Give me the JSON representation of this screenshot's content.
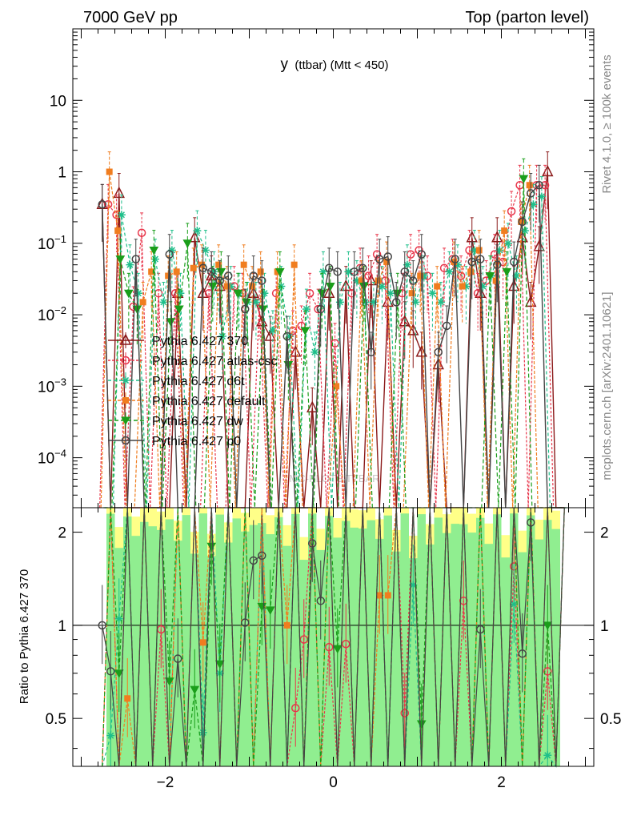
{
  "header": {
    "left": "7000 GeV pp",
    "right": "Top (parton level)"
  },
  "side_labels": {
    "rivet": "Rivet 4.1.0, ≥ 100k events",
    "mcplots": "mcplots.cern.ch [arXiv:2401.10621]"
  },
  "watermark": "MC-PLOTS TTBAR",
  "colors": {
    "p370": "#8b1a1a",
    "atlas": "#e8354a",
    "d6t": "#1fbf8a",
    "default": "#f07d1f",
    "dw": "#1a9e1a",
    "p0": "#444444",
    "band_yellow": "#ffff88",
    "band_green": "#90ee90"
  },
  "chart_data": [
    {
      "type": "line",
      "title": "y (ttbar) (Mtt < 450)",
      "title_main": "y",
      "title_sub": "(ttbar) (Mtt < 450)",
      "xlabel": "",
      "ylabel": "",
      "yscale": "log",
      "xlim": [
        -3.1,
        3.1
      ],
      "ylim": [
        2e-05,
        100
      ],
      "y_ticks": [
        {
          "value": 10,
          "label": "10"
        },
        {
          "value": 1,
          "label": "1"
        },
        {
          "value": 0.1,
          "label": "10^-1"
        },
        {
          "value": 0.01,
          "label": "10^-2"
        },
        {
          "value": 0.001,
          "label": "10^-3"
        },
        {
          "value": 0.0001,
          "label": "10^-4"
        }
      ],
      "legend_placement": "center-left",
      "x": [
        -2.75,
        -2.65,
        -2.55,
        -2.45,
        -2.35,
        -2.25,
        -2.15,
        -2.05,
        -1.95,
        -1.85,
        -1.75,
        -1.65,
        -1.55,
        -1.45,
        -1.35,
        -1.25,
        -1.15,
        -1.05,
        -0.95,
        -0.85,
        -0.75,
        -0.65,
        -0.55,
        -0.45,
        -0.35,
        -0.25,
        -0.15,
        -0.05,
        0.05,
        0.15,
        0.25,
        0.35,
        0.45,
        0.55,
        0.65,
        0.75,
        0.85,
        0.95,
        1.05,
        1.15,
        1.25,
        1.35,
        1.45,
        1.55,
        1.65,
        1.75,
        1.85,
        1.95,
        2.05,
        2.15,
        2.25,
        2.35,
        2.45,
        2.55,
        2.65,
        2.75
      ],
      "series": [
        {
          "name": "Pythia 6.427 370",
          "marker": "triangle",
          "color": "#8b1a1a",
          "values": [
            0.35,
            0,
            0.5,
            0,
            0,
            0,
            0,
            0,
            0,
            0.02,
            0,
            0.12,
            0.02,
            0.035,
            0.025,
            0,
            0,
            0,
            0.02,
            0.008,
            0.005,
            0,
            0,
            0.003,
            0,
            0.0005,
            0,
            0.02,
            0,
            0.025,
            0,
            0,
            0.03,
            0,
            0.015,
            0,
            0.008,
            0.006,
            0.003,
            0,
            0.002,
            0,
            0,
            0,
            0.12,
            0.02,
            0,
            0.12,
            0,
            0.025,
            0.12,
            0.015,
            0.09,
            1.0,
            0,
            0
          ]
        },
        {
          "name": "Pythia 6.427 atlas-csc",
          "marker": "open-circle",
          "color": "#e8354a",
          "values": [
            0,
            0.35,
            0.25,
            0,
            0.013,
            0.14,
            0,
            0.02,
            0,
            0.02,
            0,
            0,
            0,
            0.02,
            0,
            0,
            0.025,
            0.02,
            0,
            0.015,
            0,
            0.02,
            0,
            0.006,
            0.007,
            0.02,
            0.012,
            0,
            0.004,
            0,
            0.02,
            0.045,
            0.035,
            0.07,
            0.03,
            0,
            0.02,
            0.07,
            0.08,
            0.035,
            0,
            0.045,
            0.06,
            0.035,
            0.08,
            0.02,
            0.03,
            0.07,
            0.055,
            0.28,
            0.65,
            0,
            0.65,
            0.65,
            0,
            0
          ]
        },
        {
          "name": "Pythia 6.427 d6t",
          "marker": "star",
          "color": "#1fbf8a",
          "values": [
            0,
            0,
            0.25,
            0.05,
            0.02,
            0,
            0.06,
            0.015,
            0.08,
            0.02,
            0,
            0.15,
            0.08,
            0.04,
            0.005,
            0.025,
            0.02,
            0.015,
            0.015,
            0.02,
            0.006,
            0.025,
            0.005,
            0,
            0.012,
            0.003,
            0.04,
            0,
            0.015,
            0.04,
            0.03,
            0.015,
            0.015,
            0.025,
            0.02,
            0,
            0.05,
            0.015,
            0.035,
            0.02,
            0.015,
            0.04,
            0.05,
            0.025,
            0.08,
            0.025,
            0.035,
            0.08,
            0.1,
            0.035,
            0.15,
            0.35,
            0.45,
            0,
            0,
            0
          ]
        },
        {
          "name": "Pythia 6.427 default",
          "marker": "square",
          "color": "#f07d1f",
          "values": [
            0,
            1.0,
            0.15,
            0,
            0,
            0.015,
            0.04,
            0,
            0.035,
            0.04,
            0,
            0.045,
            0.05,
            0,
            0.05,
            0.025,
            0,
            0.05,
            0.025,
            0.04,
            0,
            0.04,
            0,
            0.05,
            0,
            0,
            0,
            0,
            0.001,
            0,
            0,
            0.03,
            0,
            0.03,
            0.055,
            0,
            0,
            0.02,
            0.035,
            0,
            0.025,
            0,
            0.055,
            0.025,
            0.04,
            0.08,
            0,
            0.03,
            0.15,
            0,
            0.2,
            0.65,
            0,
            0,
            0,
            0
          ]
        },
        {
          "name": "Pythia 6.427 dw",
          "marker": "down-triangle",
          "color": "#1a9e1a",
          "values": [
            0,
            0,
            0.06,
            0.02,
            0.012,
            0,
            0.08,
            0,
            0.008,
            0.012,
            0.1,
            0,
            0,
            0.025,
            0.04,
            0,
            0.02,
            0.015,
            0,
            0.012,
            0,
            0.04,
            0.002,
            0,
            0.006,
            0,
            0.02,
            0.025,
            0,
            0,
            0,
            0.025,
            0,
            0,
            0,
            0.02,
            0,
            0,
            0,
            0,
            0,
            0,
            0,
            0,
            0,
            0,
            0.035,
            0,
            0.04,
            0,
            0.8,
            0,
            0,
            0,
            0,
            0
          ]
        },
        {
          "name": "Pythia 6.427 p0",
          "marker": "open-circle",
          "color": "#444444",
          "values": [
            0.35,
            0,
            0,
            0,
            0.06,
            0,
            0,
            0,
            0.07,
            0,
            0,
            0,
            0.045,
            0.04,
            0.03,
            0.035,
            0,
            0.012,
            0.035,
            0.03,
            0,
            0,
            0.005,
            0,
            0,
            0,
            0.012,
            0.045,
            0.04,
            0,
            0.04,
            0.045,
            0.003,
            0.06,
            0.065,
            0.015,
            0.04,
            0.03,
            0.07,
            0,
            0.003,
            0.007,
            0.06,
            0,
            0.055,
            0.06,
            0,
            0.05,
            0,
            0.055,
            0.2,
            0.5,
            0.65,
            0,
            0,
            0
          ]
        }
      ]
    },
    {
      "type": "line",
      "title": "",
      "xlabel": "",
      "ylabel": "Ratio to Pythia 6.427 370",
      "yscale": "log",
      "xlim": [
        -3.1,
        3.1
      ],
      "ylim": [
        0.35,
        2.4
      ],
      "reference": 1,
      "x_ticks": [
        {
          "value": -2,
          "label": "−2"
        },
        {
          "value": 0,
          "label": "0"
        },
        {
          "value": 2,
          "label": "2"
        }
      ],
      "y_ticks": [
        {
          "value": 2,
          "label": "2"
        },
        {
          "value": 1,
          "label": "1"
        },
        {
          "value": 0.5,
          "label": "0.5"
        }
      ],
      "x": [
        -2.75,
        -2.65,
        -2.55,
        -2.45,
        -2.35,
        -2.25,
        -2.15,
        -2.05,
        -1.95,
        -1.85,
        -1.75,
        -1.65,
        -1.55,
        -1.45,
        -1.35,
        -1.25,
        -1.15,
        -1.05,
        -0.95,
        -0.85,
        -0.75,
        -0.65,
        -0.55,
        -0.45,
        -0.35,
        -0.25,
        -0.15,
        -0.05,
        0.05,
        0.15,
        0.25,
        0.35,
        0.45,
        0.55,
        0.65,
        0.75,
        0.85,
        0.95,
        1.05,
        1.15,
        1.25,
        1.35,
        1.45,
        1.55,
        1.65,
        1.75,
        1.85,
        1.95,
        2.05,
        2.15,
        2.25,
        2.35,
        2.45,
        2.55,
        2.65,
        2.75
      ],
      "series": [
        {
          "name": "Pythia 6.427 atlas-csc",
          "color": "#e8354a",
          "marker": "open-circle",
          "values": [
            0,
            0,
            0,
            0,
            0,
            0,
            0,
            0.97,
            0,
            0,
            0,
            0,
            0,
            0,
            0,
            0,
            0,
            0,
            0,
            0,
            0,
            0,
            0,
            0.54,
            0.9,
            0,
            0,
            0.85,
            0,
            0.87,
            0,
            0,
            0,
            0,
            0,
            0,
            0.52,
            0,
            0,
            0,
            0,
            0,
            0,
            1.2,
            0,
            0,
            0,
            0,
            0,
            1.55,
            0,
            0,
            0,
            0.71,
            0,
            0
          ]
        },
        {
          "name": "Pythia 6.427 d6t",
          "color": "#1fbf8a",
          "marker": "star",
          "values": [
            0,
            0.44,
            1.05,
            0,
            0,
            0,
            0,
            0,
            0,
            0,
            0,
            0,
            0.45,
            0,
            0.7,
            0,
            0,
            0,
            0,
            0,
            0,
            0,
            0,
            0,
            0,
            0,
            0,
            0,
            0,
            0,
            0,
            0,
            0,
            0,
            0,
            0,
            0,
            1.35,
            0,
            0,
            0,
            0,
            0,
            0,
            0,
            0,
            0,
            0,
            0,
            1.17,
            0,
            0,
            0,
            0.38,
            0,
            0
          ]
        },
        {
          "name": "Pythia 6.427 default",
          "color": "#f07d1f",
          "marker": "square",
          "values": [
            0,
            0,
            0,
            0.58,
            0,
            0,
            0,
            0,
            0,
            0,
            0,
            0,
            0.88,
            0,
            0,
            0,
            0,
            0,
            0,
            0,
            0,
            0,
            1.0,
            0,
            0,
            0,
            0,
            0,
            0,
            0,
            0,
            0,
            0,
            1.25,
            1.25,
            0,
            0,
            0,
            0,
            0,
            0,
            0,
            0,
            0,
            0,
            0,
            0,
            0,
            0,
            0,
            0,
            0,
            0,
            0,
            0,
            0
          ]
        },
        {
          "name": "Pythia 6.427 dw",
          "color": "#1a9e1a",
          "marker": "down-triangle",
          "values": [
            0,
            0,
            0.7,
            0,
            0,
            0,
            0,
            0,
            0.66,
            0,
            0,
            0.62,
            0,
            1.8,
            0.75,
            0,
            0,
            0,
            0,
            1.15,
            1.12,
            0,
            0,
            0,
            0,
            0,
            0,
            0,
            0.84,
            0,
            0,
            0,
            0,
            0,
            0,
            0,
            0,
            0,
            0.48,
            0,
            0,
            0,
            0,
            0,
            0,
            0,
            0,
            0,
            0,
            0,
            0,
            0,
            0,
            1.0,
            0,
            0
          ]
        },
        {
          "name": "Pythia 6.427 p0",
          "color": "#444444",
          "marker": "open-circle",
          "values": [
            1.0,
            0.71,
            0,
            0,
            0,
            0,
            0,
            0,
            0,
            0.78,
            0,
            0,
            0,
            0,
            0,
            0,
            0,
            1.02,
            1.62,
            1.68,
            0,
            0,
            0,
            0,
            0,
            1.84,
            1.2,
            0,
            0,
            0,
            0,
            0,
            0,
            0,
            0,
            0,
            0,
            0,
            0,
            0,
            0,
            0,
            0,
            0,
            0,
            0.97,
            0,
            0,
            0,
            0,
            0.81,
            2.15,
            0,
            0,
            0,
            0
          ]
        }
      ]
    }
  ]
}
